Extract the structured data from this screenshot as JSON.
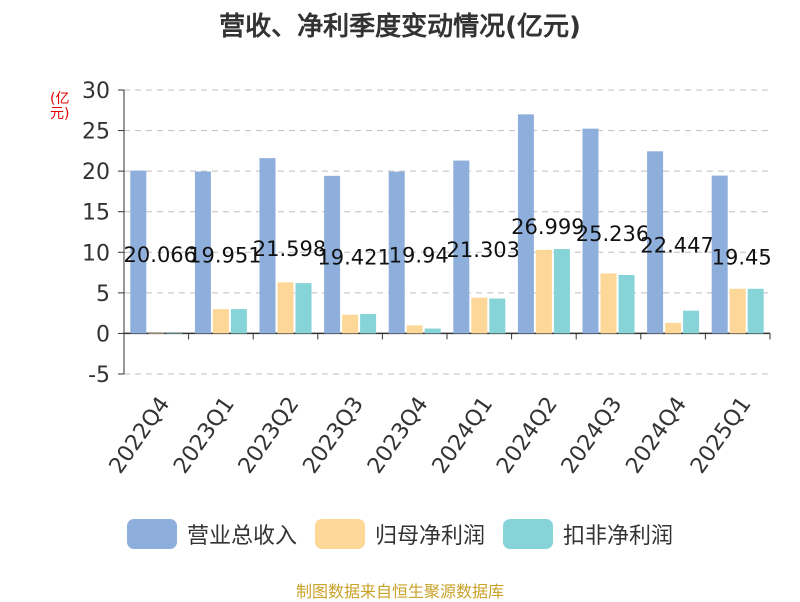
{
  "title": "营收、净利季度变动情况(亿元)",
  "source": "制图数据来自恒生聚源数据库",
  "colors": {
    "revenue": "#8eaedb",
    "net_profit": "#fdd797",
    "deducted_profit": "#86d4d8",
    "grid": "#bfbfbf",
    "axis": "#333333",
    "ylabel": "#e60000"
  },
  "chart_data": {
    "type": "bar",
    "title": "营收、净利季度变动情况(亿元)",
    "ylabel": "(亿元)",
    "xlabel": "",
    "ylim": [
      -5,
      30
    ],
    "yticks": [
      -5,
      0,
      5,
      10,
      15,
      20,
      25,
      30
    ],
    "grid": true,
    "legend_position": "bottom",
    "categories": [
      "2022Q4",
      "2023Q1",
      "2023Q2",
      "2023Q3",
      "2023Q4",
      "2024Q1",
      "2024Q2",
      "2024Q3",
      "2024Q4",
      "2025Q1"
    ],
    "series": [
      {
        "name": "营业总收入",
        "color": "#8eaedb",
        "values": [
          20.066,
          19.951,
          21.598,
          19.421,
          19.94,
          21.303,
          26.999,
          25.236,
          22.447,
          19.45
        ],
        "labels": [
          "20.066",
          "19.951",
          "21.598",
          "19.421",
          "19.94",
          "21.303",
          "26.999",
          "25.236",
          "22.447",
          "19.45"
        ]
      },
      {
        "name": "归母净利润",
        "color": "#fdd797",
        "values": [
          0.05,
          3.0,
          6.3,
          2.3,
          1.0,
          4.4,
          10.3,
          7.4,
          1.3,
          5.5
        ]
      },
      {
        "name": "扣非净利润",
        "color": "#86d4d8",
        "values": [
          0.0,
          3.0,
          6.2,
          2.4,
          0.6,
          4.3,
          10.4,
          7.2,
          2.8,
          5.5
        ]
      }
    ]
  }
}
